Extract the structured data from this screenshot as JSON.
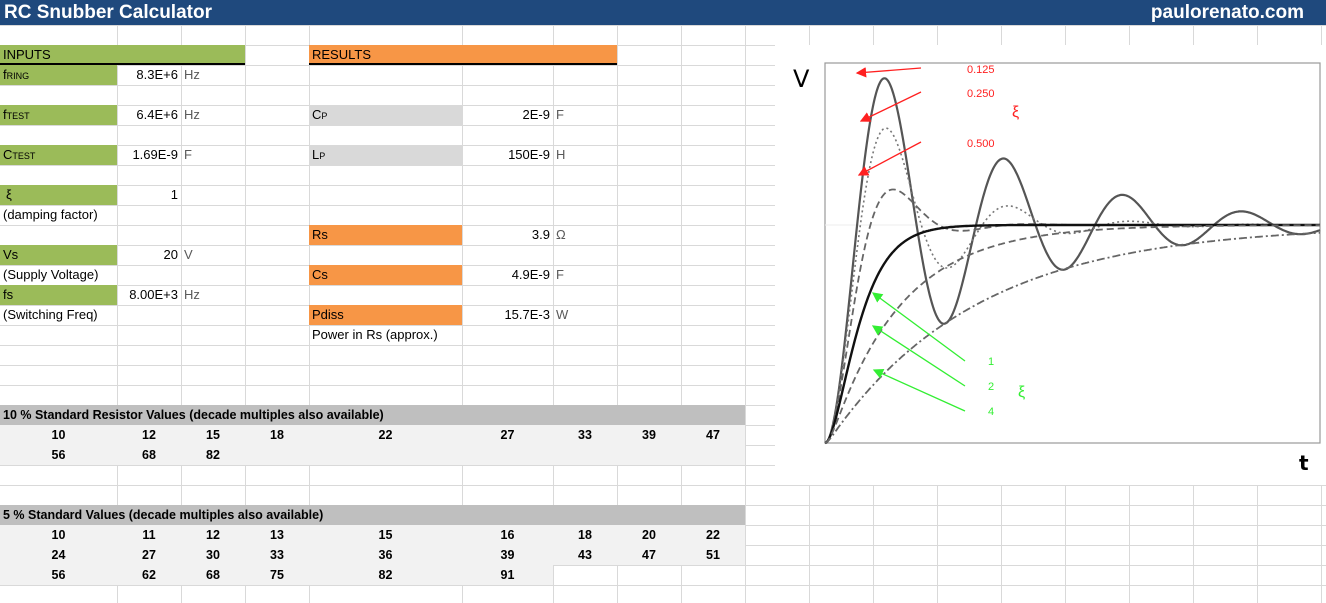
{
  "header": {
    "title": "RC Snubber Calculator",
    "site": "paulorenato.com"
  },
  "inputs": {
    "heading": "INPUTS",
    "f_ring": {
      "main": "f",
      "sub": "RING",
      "value": "8.3E+6",
      "unit": "Hz"
    },
    "f_test": {
      "main": "f",
      "sub": "TEST",
      "value": "6.4E+6",
      "unit": "Hz"
    },
    "c_test": {
      "main": "C",
      "sub": "TEST",
      "value": "1.69E-9",
      "unit": "F"
    },
    "xi": {
      "main": "ξ",
      "value": "1",
      "note": "(damping factor)"
    },
    "vs": {
      "main": "Vs",
      "value": "20",
      "unit": "V",
      "note": "(Supply Voltage)"
    },
    "fs": {
      "main": "fs",
      "value": "8.00E+3",
      "unit": "Hz",
      "note": "(Switching Freq)"
    }
  },
  "results": {
    "heading": "RESULTS",
    "cp": {
      "main": "C",
      "sub": "P",
      "value": "2E-9",
      "unit": "F"
    },
    "lp": {
      "main": "L",
      "sub": "P",
      "value": "150E-9",
      "unit": "H"
    },
    "rs": {
      "main": "Rs",
      "value": "3.9",
      "unit": "Ω"
    },
    "cs": {
      "main": "Cs",
      "value": "4.9E-9",
      "unit": "F"
    },
    "pdiss": {
      "main": "Pdiss",
      "value": "15.7E-3",
      "unit": "W",
      "note": "Power in Rs (approx.)"
    }
  },
  "table10": {
    "title": "10 % Standard Resistor Values (decade multiples also available)",
    "rows": [
      [
        "10",
        "12",
        "15",
        "18",
        "22",
        "27",
        "33",
        "39",
        "47"
      ],
      [
        "56",
        "68",
        "82"
      ]
    ]
  },
  "table5": {
    "title": "5 % Standard  Values (decade multiples also available)",
    "rows": [
      [
        "10",
        "11",
        "12",
        "13",
        "15",
        "16",
        "18",
        "20",
        "22"
      ],
      [
        "24",
        "27",
        "30",
        "33",
        "36",
        "39",
        "43",
        "47",
        "51"
      ],
      [
        "56",
        "62",
        "68",
        "75",
        "82",
        "91"
      ]
    ]
  },
  "chart_data": {
    "type": "line",
    "title": "",
    "xlabel": "t",
    "ylabel": "V",
    "underdamped_label": "ξ",
    "overdamped_label": "ξ",
    "series": [
      {
        "name": "0.125",
        "zeta": 0.125,
        "style": "solid-grey"
      },
      {
        "name": "0.250",
        "zeta": 0.25,
        "style": "dotted"
      },
      {
        "name": "0.500",
        "zeta": 0.5,
        "style": "dashed"
      },
      {
        "name": "1",
        "zeta": 1,
        "style": "solid-black"
      },
      {
        "name": "2",
        "zeta": 2,
        "style": "dashed"
      },
      {
        "name": "4",
        "zeta": 4,
        "style": "dash-dot"
      }
    ],
    "colors": {
      "underdamped_labels": "#ff2020",
      "overdamped_labels": "#33ee33"
    }
  }
}
